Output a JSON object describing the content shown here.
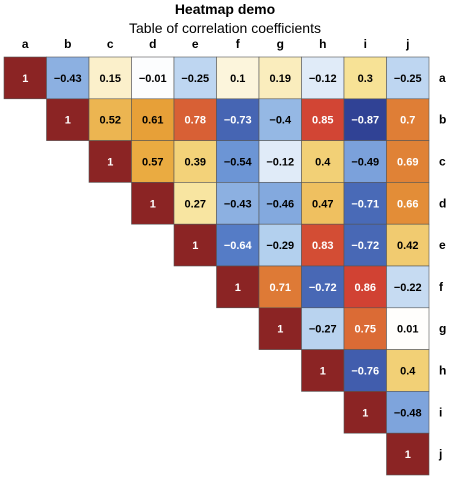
{
  "chart_data": {
    "type": "heatmap",
    "title": "Heatmap demo",
    "subtitle": "Table of correlation coefficients",
    "labels": [
      "a",
      "b",
      "c",
      "d",
      "e",
      "f",
      "g",
      "h",
      "i",
      "j"
    ],
    "matrix_upper": [
      [
        "1",
        "−0.43",
        "0.15",
        "−0.01",
        "−0.25",
        "0.1",
        "0.19",
        "−0.12",
        "0.3",
        "−0.25"
      ],
      [
        "1",
        "0.52",
        "0.61",
        "0.78",
        "−0.73",
        "−0.4",
        "0.85",
        "−0.87",
        "0.7"
      ],
      [
        "1",
        "0.57",
        "0.39",
        "−0.54",
        "−0.12",
        "0.4",
        "−0.49",
        "0.69"
      ],
      [
        "1",
        "0.27",
        "−0.43",
        "−0.46",
        "0.47",
        "−0.71",
        "0.66"
      ],
      [
        "1",
        "−0.64",
        "−0.29",
        "0.83",
        "−0.72",
        "0.42"
      ],
      [
        "1",
        "0.71",
        "−0.72",
        "0.86",
        "−0.22"
      ],
      [
        "1",
        "−0.27",
        "0.75",
        "0.01"
      ],
      [
        "1",
        "−0.76",
        "0.4"
      ],
      [
        "1",
        "−0.48"
      ],
      [
        "1"
      ]
    ],
    "colorscale": {
      "negative_strong": "#2e3f93",
      "negative_mid": "#5b86cf",
      "negative_light": "#a9c9ec",
      "neutral": "#ffffff",
      "positive_light": "#f6df8c",
      "positive_mid": "#e8a438",
      "positive_strong": "#cf3a33",
      "diagonal": "#8b2424",
      "border": "#555555"
    }
  }
}
